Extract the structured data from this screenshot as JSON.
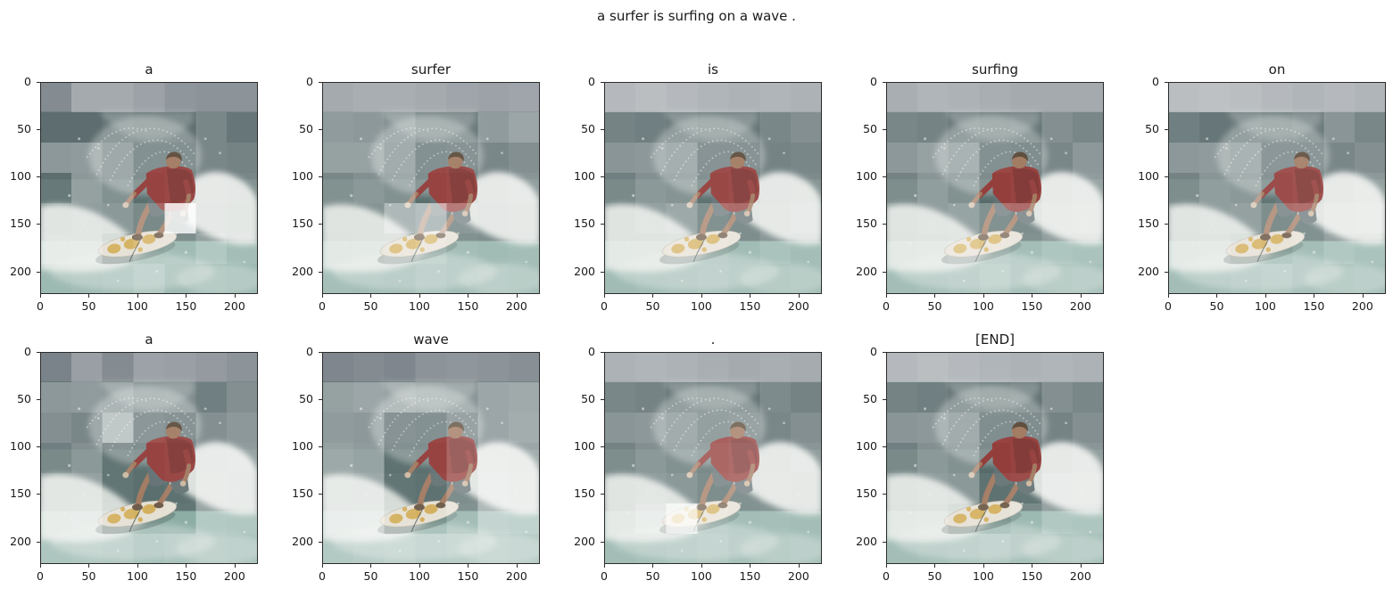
{
  "figure": {
    "suptitle": "a surfer is surfing on a wave .",
    "background": "#ffffff",
    "text_color": "#1a1a1a"
  },
  "chart_data": {
    "type": "heatmap",
    "title": "a surfer is surfing on a wave .",
    "description": "Per-token attention maps (7x7 patch grid, white-overlay opacity = attention) drawn over the same 224x224 photo of a surfer in a red shirt riding a breaking wave",
    "grid_layout": {
      "rows": 2,
      "cols": 5
    },
    "image_axis": {
      "ticks": [
        0,
        50,
        100,
        150,
        200
      ],
      "extent": 224
    },
    "tokens": [
      "a",
      "surfer",
      "is",
      "surfing",
      "on",
      "a",
      "wave",
      ".",
      "[END]"
    ],
    "attention_maps": [
      {
        "token": "a",
        "row": 0,
        "col": 0,
        "weights": [
          0.25,
          0.45,
          0.45,
          0.4,
          0.32,
          0.3,
          0.3,
          0.15,
          0.15,
          0.18,
          0.15,
          0.15,
          0.3,
          0.2,
          0.4,
          0.42,
          0.3,
          0.1,
          0.1,
          0.3,
          0.28,
          0.15,
          0.4,
          0.3,
          0.08,
          0.1,
          0.32,
          0.3,
          0.35,
          0.38,
          0.35,
          0.25,
          0.85,
          0.3,
          0.28,
          0.38,
          0.4,
          0.15,
          0.25,
          0.28,
          0.4,
          0.3,
          0.25,
          0.28,
          0.3,
          0.38,
          0.25,
          0.28,
          0.25
        ]
      },
      {
        "token": "surfer",
        "row": 0,
        "col": 1,
        "weights": [
          0.45,
          0.48,
          0.48,
          0.45,
          0.42,
          0.4,
          0.42,
          0.42,
          0.4,
          0.35,
          0.22,
          0.22,
          0.42,
          0.48,
          0.45,
          0.45,
          0.32,
          0.1,
          0.12,
          0.3,
          0.35,
          0.3,
          0.35,
          0.3,
          0.08,
          0.1,
          0.32,
          0.38,
          0.3,
          0.32,
          0.55,
          0.6,
          0.35,
          0.3,
          0.32,
          0.28,
          0.3,
          0.35,
          0.4,
          0.3,
          0.28,
          0.3,
          0.32,
          0.3,
          0.28,
          0.35,
          0.3,
          0.32,
          0.3
        ]
      },
      {
        "token": "is",
        "row": 0,
        "col": 2,
        "weights": [
          0.55,
          0.58,
          0.55,
          0.52,
          0.5,
          0.52,
          0.5,
          0.28,
          0.25,
          0.22,
          0.18,
          0.2,
          0.3,
          0.35,
          0.38,
          0.4,
          0.35,
          0.12,
          0.12,
          0.28,
          0.3,
          0.25,
          0.35,
          0.32,
          0.1,
          0.12,
          0.3,
          0.32,
          0.32,
          0.4,
          0.45,
          0.3,
          0.28,
          0.32,
          0.38,
          0.3,
          0.32,
          0.35,
          0.32,
          0.28,
          0.35,
          0.3,
          0.28,
          0.3,
          0.32,
          0.35,
          0.3,
          0.28,
          0.3
        ]
      },
      {
        "token": "surfing",
        "row": 0,
        "col": 3,
        "weights": [
          0.48,
          0.52,
          0.5,
          0.48,
          0.45,
          0.45,
          0.45,
          0.3,
          0.28,
          0.22,
          0.18,
          0.2,
          0.35,
          0.3,
          0.4,
          0.45,
          0.38,
          0.1,
          0.08,
          0.3,
          0.4,
          0.28,
          0.38,
          0.3,
          0.06,
          0.08,
          0.35,
          0.42,
          0.35,
          0.38,
          0.42,
          0.3,
          0.28,
          0.4,
          0.45,
          0.32,
          0.35,
          0.4,
          0.35,
          0.3,
          0.38,
          0.35,
          0.3,
          0.32,
          0.35,
          0.4,
          0.32,
          0.3,
          0.32
        ]
      },
      {
        "token": "on",
        "row": 0,
        "col": 4,
        "weights": [
          0.58,
          0.6,
          0.58,
          0.55,
          0.52,
          0.55,
          0.52,
          0.25,
          0.2,
          0.22,
          0.18,
          0.22,
          0.38,
          0.3,
          0.4,
          0.42,
          0.38,
          0.15,
          0.15,
          0.3,
          0.35,
          0.28,
          0.38,
          0.35,
          0.12,
          0.15,
          0.35,
          0.4,
          0.35,
          0.38,
          0.4,
          0.28,
          0.3,
          0.45,
          0.48,
          0.32,
          0.35,
          0.25,
          0.22,
          0.3,
          0.4,
          0.35,
          0.3,
          0.32,
          0.35,
          0.38,
          0.32,
          0.3,
          0.32
        ]
      },
      {
        "token": "a",
        "row": 1,
        "col": 0,
        "weights": [
          0.2,
          0.38,
          0.25,
          0.4,
          0.38,
          0.35,
          0.3,
          0.4,
          0.42,
          0.4,
          0.3,
          0.32,
          0.25,
          0.35,
          0.35,
          0.3,
          0.55,
          0.15,
          0.12,
          0.35,
          0.4,
          0.25,
          0.35,
          0.12,
          0.08,
          0.1,
          0.38,
          0.42,
          0.38,
          0.4,
          0.12,
          0.08,
          0.1,
          0.4,
          0.38,
          0.4,
          0.42,
          0.15,
          0.1,
          0.12,
          0.42,
          0.4,
          0.38,
          0.4,
          0.38,
          0.3,
          0.35,
          0.38,
          0.36
        ]
      },
      {
        "token": "wave",
        "row": 1,
        "col": 1,
        "weights": [
          0.22,
          0.25,
          0.22,
          0.3,
          0.32,
          0.3,
          0.28,
          0.45,
          0.48,
          0.45,
          0.4,
          0.38,
          0.48,
          0.5,
          0.42,
          0.4,
          0.12,
          0.1,
          0.25,
          0.48,
          0.52,
          0.45,
          0.42,
          0.1,
          0.08,
          0.25,
          0.5,
          0.48,
          0.48,
          0.45,
          0.12,
          0.1,
          0.28,
          0.52,
          0.5,
          0.45,
          0.48,
          0.15,
          0.12,
          0.3,
          0.55,
          0.52,
          0.42,
          0.45,
          0.48,
          0.42,
          0.45,
          0.48,
          0.45
        ]
      },
      {
        "token": ".",
        "row": 1,
        "col": 2,
        "weights": [
          0.5,
          0.52,
          0.5,
          0.48,
          0.45,
          0.48,
          0.46,
          0.3,
          0.28,
          0.22,
          0.18,
          0.2,
          0.32,
          0.28,
          0.38,
          0.4,
          0.32,
          0.22,
          0.25,
          0.3,
          0.35,
          0.28,
          0.35,
          0.3,
          0.25,
          0.28,
          0.32,
          0.38,
          0.35,
          0.38,
          0.35,
          0.28,
          0.3,
          0.35,
          0.32,
          0.32,
          0.45,
          0.78,
          0.35,
          0.3,
          0.32,
          0.3,
          0.3,
          0.32,
          0.35,
          0.38,
          0.32,
          0.3,
          0.32
        ]
      },
      {
        "token": "[END]",
        "row": 1,
        "col": 3,
        "weights": [
          0.55,
          0.58,
          0.55,
          0.52,
          0.5,
          0.52,
          0.5,
          0.28,
          0.25,
          0.2,
          0.15,
          0.18,
          0.35,
          0.3,
          0.38,
          0.4,
          0.32,
          0.08,
          0.08,
          0.28,
          0.35,
          0.25,
          0.35,
          0.3,
          0.05,
          0.08,
          0.32,
          0.38,
          0.35,
          0.38,
          0.35,
          0.1,
          0.12,
          0.42,
          0.45,
          0.32,
          0.35,
          0.18,
          0.15,
          0.25,
          0.4,
          0.38,
          0.3,
          0.32,
          0.35,
          0.38,
          0.32,
          0.3,
          0.32
        ]
      }
    ]
  },
  "scene_palette": {
    "sky": "#5b656d",
    "sea_dark": "#415457",
    "sea_mid": "#4d6362",
    "water_light": "#7da399",
    "foam": "#e9ece8",
    "shirt": "#8f3431",
    "skin": "#9b7156",
    "skin_light": "#c9b39a",
    "shorts": "#5c6a6d",
    "board": "#e3ddd0",
    "board_accent": "#cda23e",
    "hair": "#53402e"
  }
}
